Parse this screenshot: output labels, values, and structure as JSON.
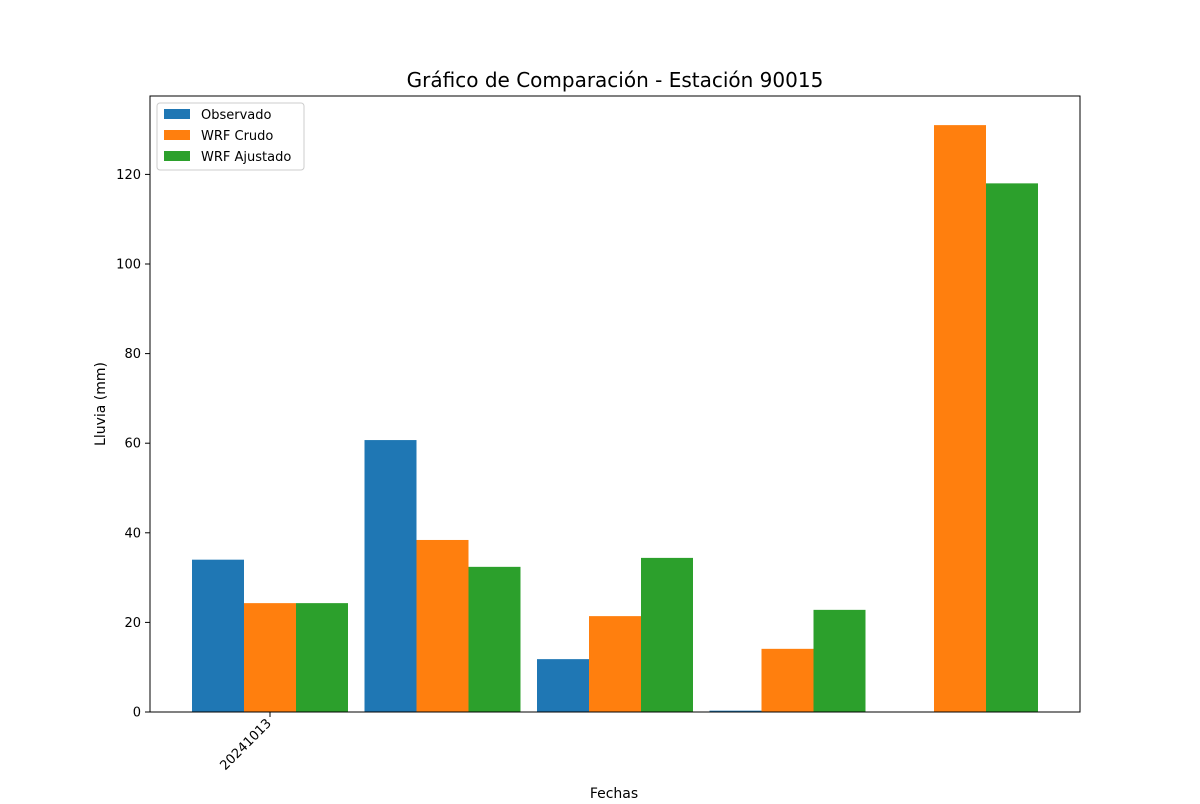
{
  "chart_data": {
    "type": "bar",
    "title": "Gráfico de Comparación - Estación 90015",
    "xlabel": "Fechas",
    "ylabel": "Lluvia (mm)",
    "ylim": [
      0,
      137.5
    ],
    "yticks": [
      0,
      20,
      40,
      60,
      80,
      100,
      120
    ],
    "categories": [
      "20241013",
      "",
      "",
      "",
      ""
    ],
    "series": [
      {
        "name": "Observado",
        "color": "#1f77b4",
        "values": [
          34.0,
          60.7,
          11.8,
          0.3,
          0.0
        ]
      },
      {
        "name": "WRF Crudo",
        "color": "#ff7f0e",
        "values": [
          24.3,
          38.4,
          21.4,
          14.1,
          131.0
        ]
      },
      {
        "name": "WRF Ajustado",
        "color": "#2ca02c",
        "values": [
          24.3,
          32.4,
          34.4,
          22.8,
          118.0
        ]
      }
    ],
    "grid": false,
    "legend_position": "top-left",
    "xtick_rotation": 45
  }
}
